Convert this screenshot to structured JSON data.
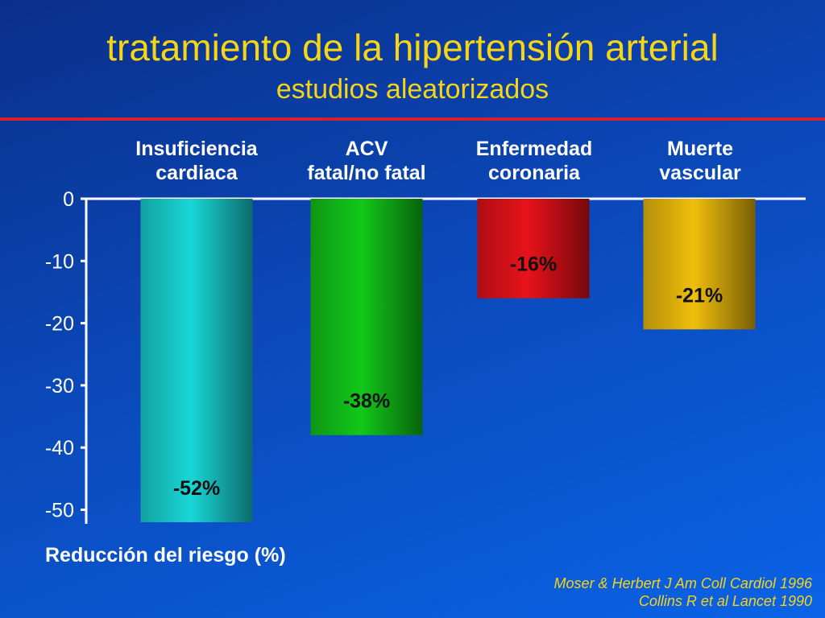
{
  "slide": {
    "title": "tratamiento de la hipertensión arterial",
    "subtitle": "estudios aleatorizados",
    "source_line1": "Moser & Herbert J Am Coll Cardiol 1996",
    "source_line2": "Collins R et al Lancet 1990",
    "colors": {
      "title": "#f5d516",
      "rule": "#d6202e",
      "background": "#0b48b8"
    }
  },
  "chart_data": {
    "type": "bar",
    "categories": [
      [
        "Insuficiencia",
        "cardiaca"
      ],
      [
        "ACV",
        "fatal/no fatal"
      ],
      [
        "Enfermedad",
        "coronaria"
      ],
      [
        "Muerte",
        "vascular"
      ]
    ],
    "values": [
      -52,
      -38,
      -16,
      -21
    ],
    "value_labels": [
      "-52%",
      "-38%",
      "-16%",
      "-21%"
    ],
    "bar_colors": [
      "#19d6d6",
      "#12c81a",
      "#e8121a",
      "#f0be0c"
    ],
    "ylabel": "Reducción del riesgo (%)",
    "ylim": [
      -52,
      0
    ],
    "yticks": [
      0,
      -10,
      -20,
      -30,
      -40,
      -50
    ],
    "ytick_labels": [
      "0",
      "-10",
      "-20",
      "-30",
      "-40",
      "-50"
    ],
    "grid": false
  }
}
